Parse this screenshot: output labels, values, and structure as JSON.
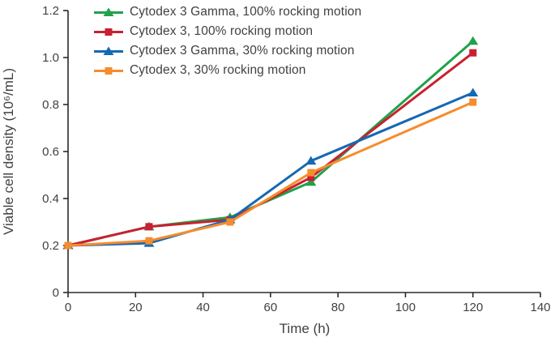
{
  "figure": {
    "background": "#ffffff",
    "text_color": "#414141",
    "axis_color": "#2a2a2a"
  },
  "chart_data": {
    "type": "line",
    "title": "",
    "xlabel": "Time (h)",
    "ylabel": "Viable cell density (10⁶/mL)",
    "xlim": [
      0,
      140
    ],
    "ylim": [
      0,
      1.2
    ],
    "xticks": {
      "values": [
        0,
        20,
        40,
        60,
        80,
        100,
        120,
        140
      ],
      "labels": [
        "0",
        "20",
        "40",
        "60",
        "80",
        "100",
        "120",
        "140"
      ]
    },
    "yticks": {
      "values": [
        0,
        0.2,
        0.4,
        0.6,
        0.8,
        1.0,
        1.2
      ],
      "labels": [
        "0",
        "0.2",
        "0.4",
        "0.6",
        "0.8",
        "1.0",
        "1.2"
      ]
    },
    "grid": "off",
    "legend_position": "top-left-inside",
    "x": [
      0,
      24,
      48,
      72,
      120
    ],
    "series": [
      {
        "name": "Cytodex 3 Gamma, 100% rocking motion",
        "color": "#1FA24A",
        "marker": "triangle",
        "values": [
          0.2,
          0.28,
          0.32,
          0.47,
          1.07
        ]
      },
      {
        "name": "Cytodex 3, 100% rocking motion",
        "color": "#C92031",
        "marker": "square",
        "values": [
          0.2,
          0.28,
          0.31,
          0.49,
          1.02
        ]
      },
      {
        "name": "Cytodex 3 Gamma, 30% rocking motion",
        "color": "#1568B3",
        "marker": "triangle",
        "values": [
          0.2,
          0.21,
          0.31,
          0.56,
          0.85
        ]
      },
      {
        "name": "Cytodex 3, 30% rocking motion",
        "color": "#F68C2C",
        "marker": "square",
        "values": [
          0.2,
          0.22,
          0.3,
          0.51,
          0.81
        ]
      }
    ]
  }
}
